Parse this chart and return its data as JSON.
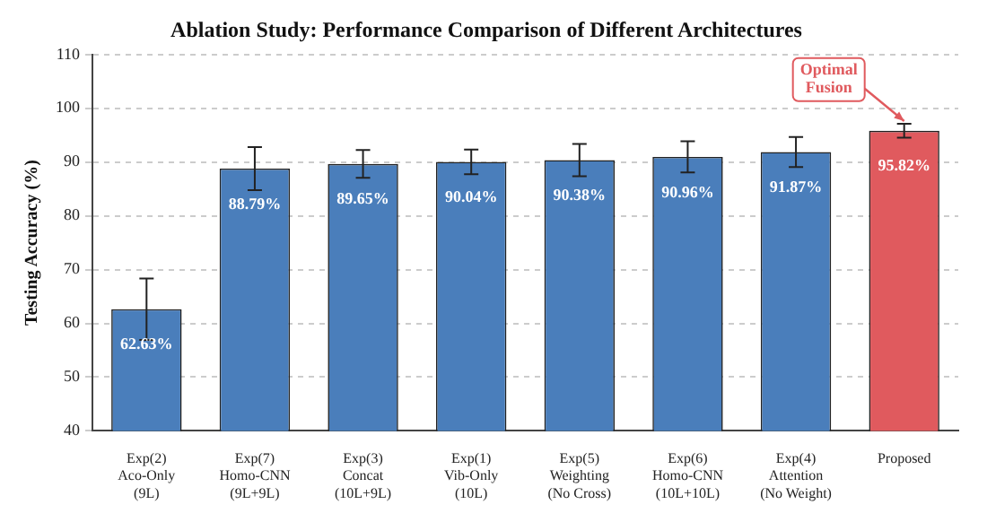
{
  "chart_data": {
    "type": "bar",
    "title": "Ablation Study: Performance Comparison of Different Architectures",
    "ylabel": "Testing Accuracy (%)",
    "categories": [
      "Exp(2)\nAco-Only\n(9L)",
      "Exp(7)\nHomo-CNN\n(9L+9L)",
      "Exp(3)\nConcat\n(10L+9L)",
      "Exp(1)\nVib-Only\n(10L)",
      "Exp(5)\nWeighting\n(No Cross)",
      "Exp(6)\nHomo-CNN\n(10L+10L)",
      "Exp(4)\nAttention\n(No Weight)",
      "Proposed"
    ],
    "values": [
      62.63,
      88.79,
      89.65,
      90.04,
      90.38,
      90.96,
      91.87,
      95.82
    ],
    "value_labels": [
      "62.63%",
      "88.79%",
      "89.65%",
      "90.04%",
      "90.38%",
      "90.96%",
      "91.87%",
      "95.82%"
    ],
    "errors": [
      5.7,
      4.0,
      2.6,
      2.3,
      3.0,
      2.9,
      2.8,
      1.3
    ],
    "colors": [
      "#4a7ebb",
      "#4a7ebb",
      "#4a7ebb",
      "#4a7ebb",
      "#4a7ebb",
      "#4a7ebb",
      "#4a7ebb",
      "#e05a5e"
    ],
    "ylim": [
      40,
      110
    ],
    "yticks": [
      40,
      50,
      60,
      70,
      80,
      90,
      100,
      110
    ],
    "grid": "y",
    "legend": false,
    "annotations": [
      {
        "text": "Optimal\nFusion",
        "x": "Proposed",
        "y": 95.82
      }
    ]
  }
}
